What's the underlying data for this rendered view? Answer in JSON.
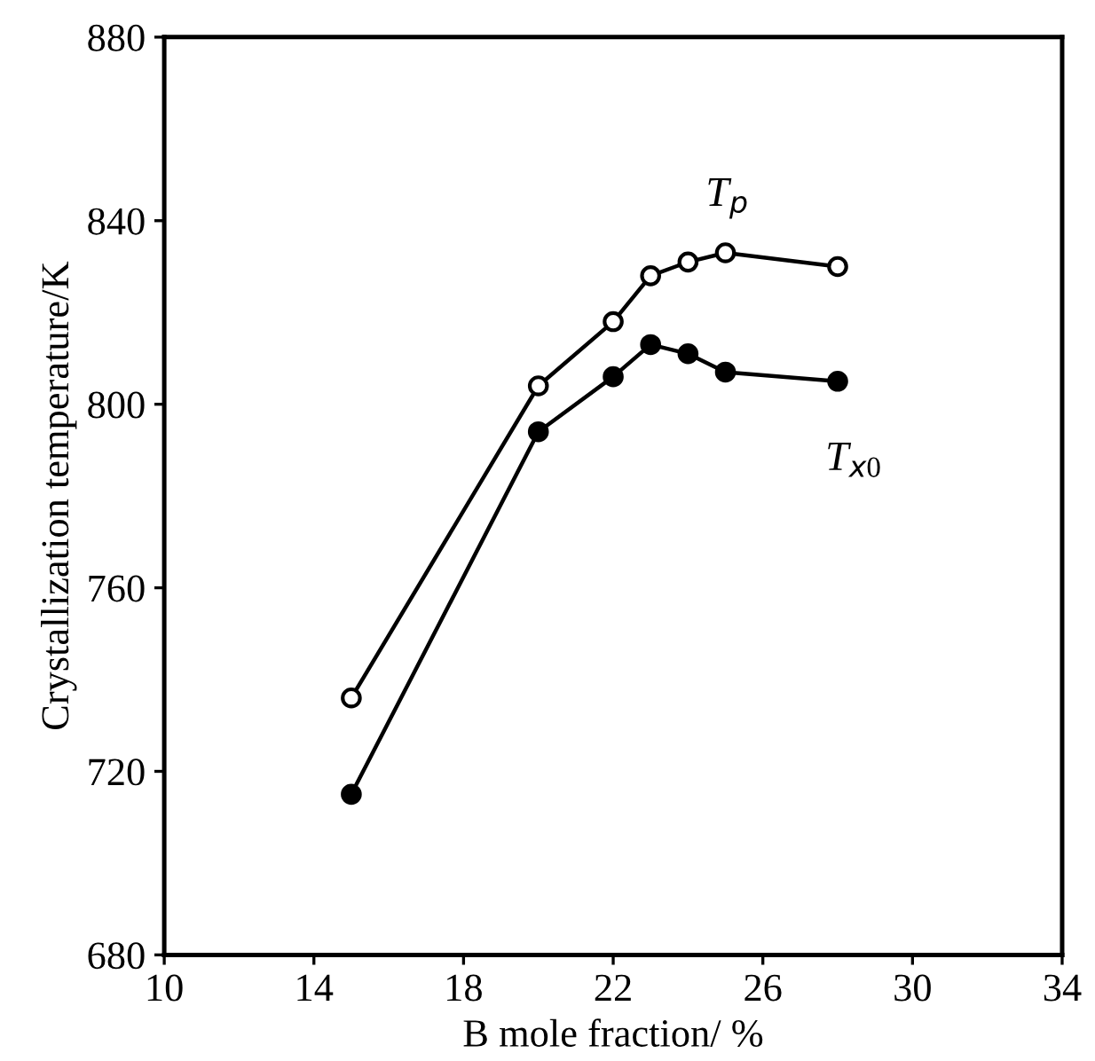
{
  "chart_data": {
    "type": "line",
    "xlabel": "B mole fraction/ %",
    "ylabel": "Crystallization temperature/K",
    "x": [
      15,
      20,
      22,
      23,
      24,
      25,
      28
    ],
    "series": [
      {
        "name": "T$_{p}$",
        "color": "#000000",
        "values": [
          736,
          804,
          818,
          828,
          831,
          833,
          830
        ]
      },
      {
        "name": "T$_{x0}$",
        "color": "#000000",
        "values": [
          715,
          794,
          806,
          813,
          811,
          807,
          805
        ]
      }
    ],
    "xlim": [
      10,
      34
    ],
    "xticks": [
      10,
      14,
      18,
      22,
      26,
      30,
      34
    ],
    "ylim": [
      680,
      880
    ],
    "yticks": [
      680,
      720,
      760,
      800,
      840,
      880
    ],
    "marker": "circle",
    "line_style": "solid",
    "grid": false,
    "legend": false
  }
}
